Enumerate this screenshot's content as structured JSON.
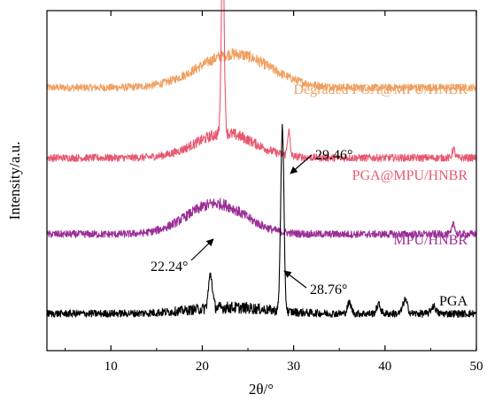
{
  "chart_data": {
    "type": "line",
    "xlabel": "2θ/°",
    "ylabel": "Intensity/a.u.",
    "xlim": [
      3,
      50
    ],
    "x_ticks": [
      10,
      20,
      30,
      40,
      50
    ],
    "y_ticks_shown": false,
    "grid": false,
    "series": [
      {
        "name": "Degraded PGA@MPU/HNBR",
        "color": "#F0A060",
        "baseline_intensity": 0.78,
        "broad_hump": {
          "center": 23.5,
          "width": 5.5,
          "height": 0.11
        },
        "peaks": []
      },
      {
        "name": "PGA@MPU/HNBR",
        "color": "#E85870",
        "baseline_intensity": 0.55,
        "broad_hump": {
          "center": 22.5,
          "width": 4.5,
          "height": 0.08
        },
        "peaks": [
          {
            "x": 22.24,
            "height": 0.63,
            "width": 0.22
          },
          {
            "x": 29.46,
            "height": 0.08,
            "width": 0.2
          },
          {
            "x": 47.5,
            "height": 0.03,
            "width": 0.2
          }
        ]
      },
      {
        "name": "MPU/HNBR",
        "color": "#9B2E96",
        "baseline_intensity": 0.3,
        "broad_hump": {
          "center": 21.5,
          "width": 4.5,
          "height": 0.1
        },
        "peaks": [
          {
            "x": 47.5,
            "height": 0.04,
            "width": 0.2
          }
        ]
      },
      {
        "name": "PGA",
        "color": "#000000",
        "baseline_intensity": 0.04,
        "broad_hump": {
          "center": 23.0,
          "width": 6.0,
          "height": 0.02
        },
        "peaks": [
          {
            "x": 20.9,
            "height": 0.11,
            "width": 0.3
          },
          {
            "x": 28.76,
            "height": 0.6,
            "width": 0.25
          },
          {
            "x": 36.1,
            "height": 0.035,
            "width": 0.3
          },
          {
            "x": 39.3,
            "height": 0.03,
            "width": 0.3
          },
          {
            "x": 42.2,
            "height": 0.045,
            "width": 0.35
          },
          {
            "x": 45.3,
            "height": 0.025,
            "width": 0.35
          }
        ]
      }
    ],
    "annotations": [
      {
        "text": "29.46°",
        "x": 29.46,
        "y": 0.64
      },
      {
        "text": "22.24°",
        "x": 22.24,
        "y": 0.35
      },
      {
        "text": "28.76°",
        "x": 28.76,
        "y": 0.62
      }
    ],
    "legend": "inline labels at right end of each curve"
  }
}
